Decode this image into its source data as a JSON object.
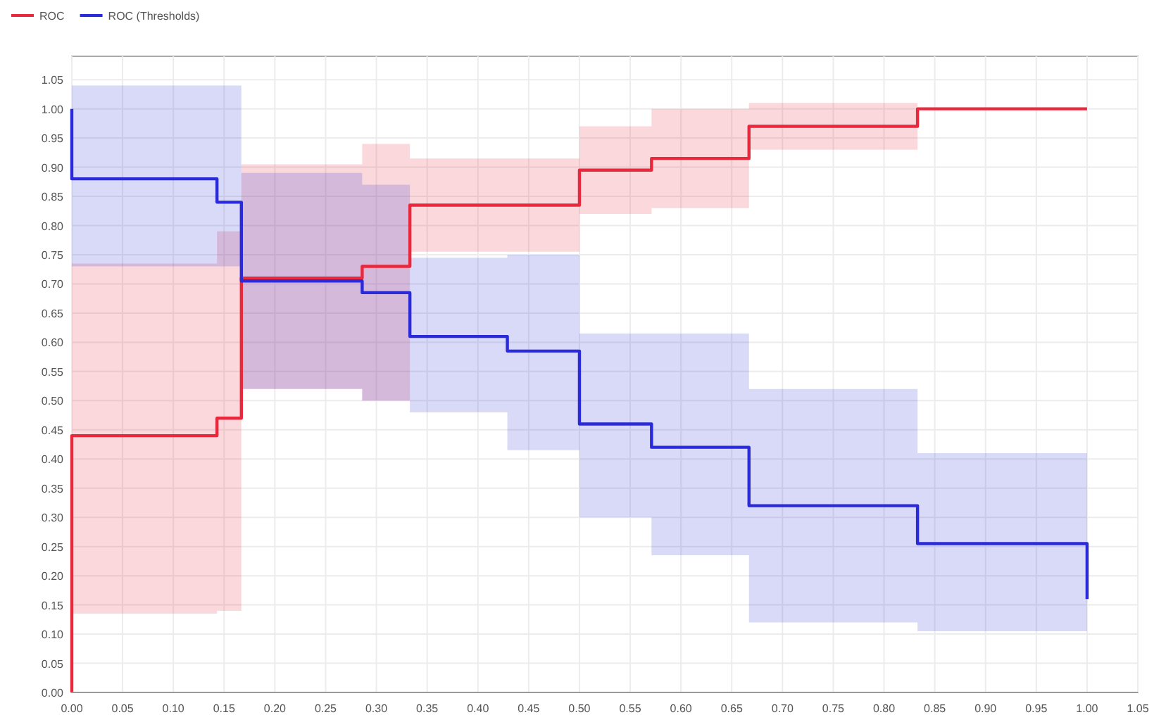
{
  "chart_data": {
    "type": "line",
    "xlim": [
      0,
      1.05
    ],
    "ylim": [
      0,
      1.09
    ],
    "xticks": [
      {
        "value": 0,
        "label": "0.00"
      },
      {
        "value": 0.05,
        "label": "0.05"
      },
      {
        "value": 0.1,
        "label": "0.10"
      },
      {
        "value": 0.15,
        "label": "0.15"
      },
      {
        "value": 0.2,
        "label": "0.20"
      },
      {
        "value": 0.25,
        "label": "0.25"
      },
      {
        "value": 0.3,
        "label": "0.30"
      },
      {
        "value": 0.35,
        "label": "0.35"
      },
      {
        "value": 0.4,
        "label": "0.40"
      },
      {
        "value": 0.45,
        "label": "0.45"
      },
      {
        "value": 0.5,
        "label": "0.50"
      },
      {
        "value": 0.55,
        "label": "0.55"
      },
      {
        "value": 0.6,
        "label": "0.60"
      },
      {
        "value": 0.65,
        "label": "0.65"
      },
      {
        "value": 0.7,
        "label": "0.70"
      },
      {
        "value": 0.75,
        "label": "0.75"
      },
      {
        "value": 0.8,
        "label": "0.80"
      },
      {
        "value": 0.85,
        "label": "0.85"
      },
      {
        "value": 0.9,
        "label": "0.90"
      },
      {
        "value": 0.95,
        "label": "0.95"
      },
      {
        "value": 1,
        "label": "1.00"
      },
      {
        "value": 1.05,
        "label": "1.05"
      }
    ],
    "yticks": [
      {
        "value": 0,
        "label": "0.00"
      },
      {
        "value": 0.05,
        "label": "0.05"
      },
      {
        "value": 0.1,
        "label": "0.10"
      },
      {
        "value": 0.15,
        "label": "0.15"
      },
      {
        "value": 0.2,
        "label": "0.20"
      },
      {
        "value": 0.25,
        "label": "0.25"
      },
      {
        "value": 0.3,
        "label": "0.30"
      },
      {
        "value": 0.35,
        "label": "0.35"
      },
      {
        "value": 0.4,
        "label": "0.40"
      },
      {
        "value": 0.45,
        "label": "0.45"
      },
      {
        "value": 0.5,
        "label": "0.50"
      },
      {
        "value": 0.55,
        "label": "0.55"
      },
      {
        "value": 0.6,
        "label": "0.60"
      },
      {
        "value": 0.65,
        "label": "0.65"
      },
      {
        "value": 0.7,
        "label": "0.70"
      },
      {
        "value": 0.75,
        "label": "0.75"
      },
      {
        "value": 0.8,
        "label": "0.80"
      },
      {
        "value": 0.85,
        "label": "0.85"
      },
      {
        "value": 0.9,
        "label": "0.90"
      },
      {
        "value": 0.95,
        "label": "0.95"
      },
      {
        "value": 1,
        "label": "1.00"
      },
      {
        "value": 1.05,
        "label": "1.05"
      }
    ],
    "grid": true,
    "legend": "top left",
    "marker": "none",
    "line_style": "solid",
    "series": [
      {
        "name": "ROC",
        "color": "#e8283c",
        "x": [
          0,
          0,
          0.143,
          0.143,
          0.167,
          0.167,
          0.286,
          0.286,
          0.333,
          0.333,
          0.5,
          0.5,
          0.571,
          0.571,
          0.667,
          0.667,
          0.833,
          0.833,
          1.0
        ],
        "values": [
          0,
          0.44,
          0.44,
          0.47,
          0.47,
          0.71,
          0.71,
          0.73,
          0.73,
          0.835,
          0.835,
          0.895,
          0.895,
          0.915,
          0.915,
          0.97,
          0.97,
          1.0,
          1.0
        ],
        "lower": [
          0.135,
          0.135,
          0.135,
          0.14,
          0.14,
          0.52,
          0.52,
          0.5,
          0.5,
          0.755,
          0.755,
          0.82,
          0.82,
          0.83,
          0.83,
          0.93,
          0.93,
          null,
          null
        ],
        "upper": [
          0.735,
          0.735,
          0.735,
          0.79,
          0.79,
          0.905,
          0.905,
          0.94,
          0.94,
          0.915,
          0.915,
          0.97,
          0.97,
          1.0,
          1.0,
          1.01,
          1.01,
          null,
          null
        ]
      },
      {
        "name": "ROC (Thresholds)",
        "color": "#2a2ad8",
        "x": [
          0,
          0,
          0.143,
          0.143,
          0.167,
          0.167,
          0.286,
          0.286,
          0.333,
          0.333,
          0.429,
          0.429,
          0.5,
          0.5,
          0.571,
          0.571,
          0.667,
          0.667,
          0.833,
          0.833,
          1.0,
          1.0
        ],
        "values": [
          1.0,
          0.88,
          0.88,
          0.84,
          0.84,
          0.705,
          0.705,
          0.685,
          0.685,
          0.61,
          0.61,
          0.585,
          0.585,
          0.46,
          0.46,
          0.42,
          0.42,
          0.32,
          0.32,
          0.255,
          0.255,
          0.16
        ],
        "lower": [
          0.73,
          0.73,
          0.73,
          0.73,
          0.73,
          0.52,
          0.52,
          0.5,
          0.5,
          0.48,
          0.48,
          0.415,
          0.415,
          0.3,
          0.3,
          0.235,
          0.235,
          0.12,
          0.12,
          0.105,
          0.105,
          null
        ],
        "upper": [
          1.04,
          1.04,
          1.04,
          1.04,
          1.04,
          0.89,
          0.89,
          0.87,
          0.87,
          0.745,
          0.745,
          0.75,
          0.75,
          0.615,
          0.615,
          0.615,
          0.615,
          0.52,
          0.52,
          0.41,
          0.41,
          null
        ]
      }
    ]
  }
}
